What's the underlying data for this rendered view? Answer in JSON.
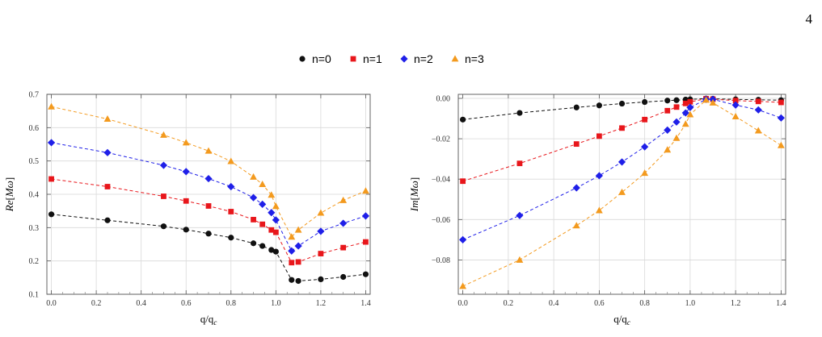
{
  "page_number": "4",
  "legend": [
    {
      "label": "n=0",
      "color": "#111111",
      "marker": "circle"
    },
    {
      "label": "n=1",
      "color": "#e8161b",
      "marker": "square"
    },
    {
      "label": "n=2",
      "color": "#1f1fe8",
      "marker": "diamond"
    },
    {
      "label": "n=3",
      "color": "#f39a1e",
      "marker": "triangle"
    }
  ],
  "chart_data": [
    {
      "type": "line",
      "xlabel": "q/q_c",
      "ylabel": "Re[Mω]",
      "xlim": [
        -0.02,
        1.42
      ],
      "ylim": [
        0.1,
        0.7
      ],
      "xticks": [
        0.0,
        0.2,
        0.4,
        0.6,
        0.8,
        1.0,
        1.2,
        1.4
      ],
      "xtick_labels": [
        "0.0",
        "0.2",
        "0.4",
        "0.6",
        "0.8",
        "1.0",
        "1.2",
        "1.4"
      ],
      "yticks": [
        0.1,
        0.2,
        0.3,
        0.4,
        0.5,
        0.6,
        0.7
      ],
      "ytick_labels": [
        "0.1",
        "0.2",
        "0.3",
        "0.4",
        "0.5",
        "0.6",
        "0.7"
      ],
      "grid": true,
      "line_style": "dashed",
      "x": [
        0.0,
        0.25,
        0.5,
        0.6,
        0.7,
        0.8,
        0.9,
        0.94,
        0.98,
        1.0,
        1.07,
        1.1,
        1.2,
        1.3,
        1.4
      ],
      "series": [
        {
          "name": "n=0",
          "values": [
            0.34,
            0.322,
            0.304,
            0.294,
            0.282,
            0.27,
            0.253,
            0.245,
            0.233,
            0.228,
            0.143,
            0.14,
            0.145,
            0.152,
            0.16
          ]
        },
        {
          "name": "n=1",
          "values": [
            0.446,
            0.423,
            0.394,
            0.38,
            0.365,
            0.348,
            0.324,
            0.31,
            0.293,
            0.286,
            0.195,
            0.197,
            0.222,
            0.24,
            0.257
          ]
        },
        {
          "name": "n=2",
          "values": [
            0.555,
            0.525,
            0.487,
            0.468,
            0.447,
            0.423,
            0.39,
            0.37,
            0.345,
            0.323,
            0.23,
            0.245,
            0.289,
            0.313,
            0.335
          ]
        },
        {
          "name": "n=3",
          "values": [
            0.663,
            0.626,
            0.578,
            0.555,
            0.53,
            0.499,
            0.452,
            0.43,
            0.398,
            0.364,
            0.272,
            0.293,
            0.344,
            0.382,
            0.41
          ]
        }
      ]
    },
    {
      "type": "line",
      "xlabel": "q/q_c",
      "ylabel": "Im[Mω]",
      "xlim": [
        -0.02,
        1.42
      ],
      "ylim": [
        -0.097,
        0.002
      ],
      "xticks": [
        0.0,
        0.2,
        0.4,
        0.6,
        0.8,
        1.0,
        1.2,
        1.4
      ],
      "xtick_labels": [
        "0.0",
        "0.2",
        "0.4",
        "0.6",
        "0.8",
        "1.0",
        "1.2",
        "1.4"
      ],
      "yticks": [
        0.0,
        -0.02,
        -0.04,
        -0.06,
        -0.08
      ],
      "ytick_labels": [
        "0.00",
        "−0.02",
        "−0.04",
        "−0.06",
        "−0.08"
      ],
      "grid": true,
      "line_style": "dashed",
      "x": [
        0.0,
        0.25,
        0.5,
        0.6,
        0.7,
        0.8,
        0.9,
        0.94,
        0.98,
        1.0,
        1.07,
        1.1,
        1.2,
        1.3,
        1.4
      ],
      "series": [
        {
          "name": "n=0",
          "values": [
            -0.0105,
            -0.0072,
            -0.0045,
            -0.0035,
            -0.0026,
            -0.0018,
            -0.0011,
            -0.0009,
            -0.0006,
            -0.0005,
            -0.0001,
            -0.0002,
            -0.0005,
            -0.0007,
            -0.0009
          ]
        },
        {
          "name": "n=1",
          "values": [
            -0.041,
            -0.0322,
            -0.0226,
            -0.0187,
            -0.0147,
            -0.0105,
            -0.0061,
            -0.0043,
            -0.0025,
            -0.0017,
            -0.0002,
            -0.0004,
            -0.0011,
            -0.0015,
            -0.002
          ]
        },
        {
          "name": "n=2",
          "values": [
            -0.07,
            -0.058,
            -0.0443,
            -0.0383,
            -0.0315,
            -0.024,
            -0.0157,
            -0.0117,
            -0.0072,
            -0.0045,
            -0.0005,
            -0.0005,
            -0.0033,
            -0.0057,
            -0.0097
          ]
        },
        {
          "name": "n=3",
          "values": [
            -0.093,
            -0.08,
            -0.063,
            -0.0555,
            -0.0465,
            -0.037,
            -0.0255,
            -0.0197,
            -0.0127,
            -0.008,
            -0.0008,
            -0.0022,
            -0.009,
            -0.016,
            -0.0233
          ]
        }
      ]
    }
  ]
}
